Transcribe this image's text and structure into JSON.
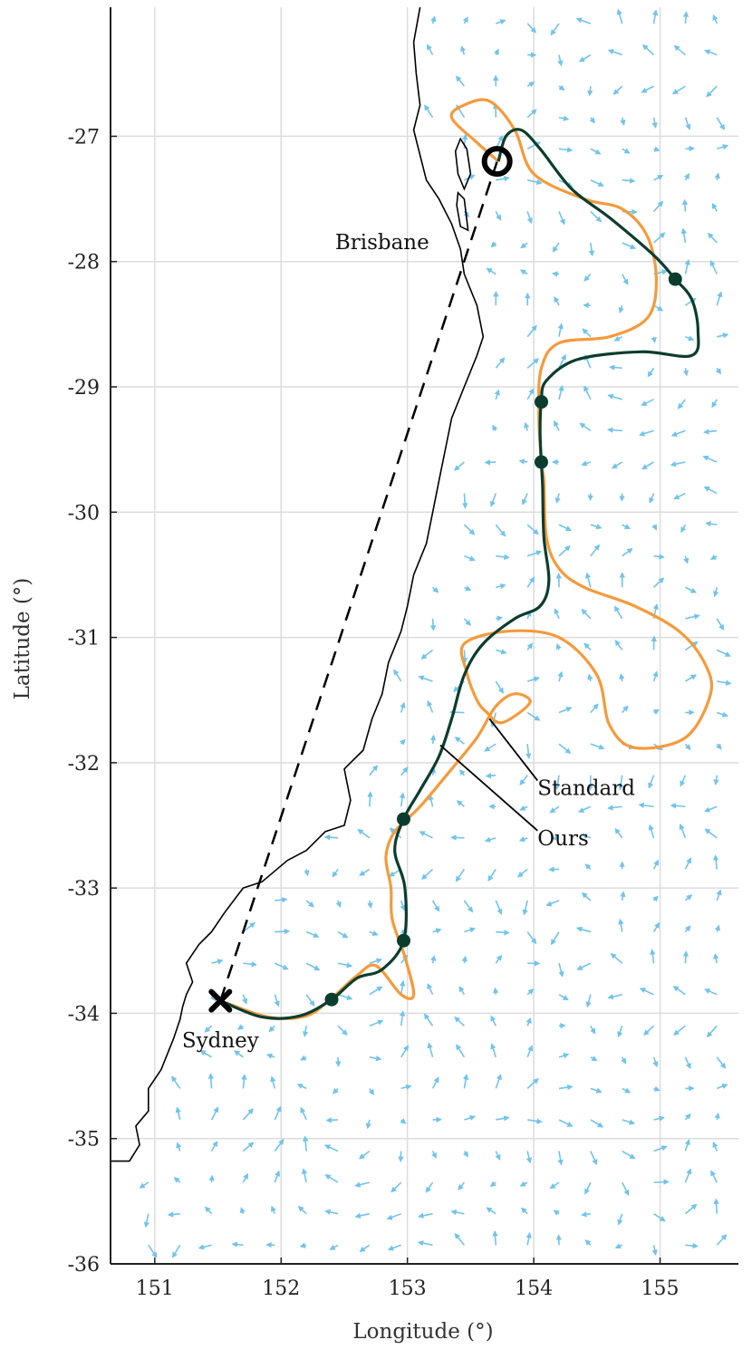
{
  "chart_data": {
    "type": "line",
    "title": "",
    "xlabel": "Longitude (°)",
    "ylabel": "Latitude (°)",
    "xlim": [
      150.65,
      155.62
    ],
    "ylim": [
      -36,
      -25.97
    ],
    "xticks": [
      151,
      152,
      153,
      154,
      155
    ],
    "yticks": [
      -27,
      -28,
      -29,
      -30,
      -31,
      -32,
      -33,
      -34,
      -35,
      -36
    ],
    "grid": true,
    "legend": "none",
    "colors": {
      "standard": "#f59a3c",
      "ours": "#0b3d2e",
      "coast": "#000000",
      "currents": "#72c3ec",
      "straight": "#000000",
      "grid": "#dcdcdc"
    },
    "cities": [
      {
        "name": "Brisbane",
        "lon": 152.8,
        "lat": -27.9
      },
      {
        "name": "Sydney",
        "lon": 151.52,
        "lat": -34.27
      }
    ],
    "start": {
      "lon": 151.52,
      "lat": -33.9,
      "marker": "x"
    },
    "goal": {
      "lon": 153.71,
      "lat": -27.2,
      "marker": "o"
    },
    "annotations": [
      {
        "text": "Standard",
        "lon": 154.03,
        "lat": -32.2,
        "arrow_to": [
          153.65,
          -31.65
        ]
      },
      {
        "text": "Ours",
        "lon": 154.03,
        "lat": -32.6,
        "arrow_to": [
          153.26,
          -31.86
        ]
      }
    ],
    "straight_line": [
      [
        151.52,
        -33.9
      ],
      [
        153.71,
        -27.2
      ]
    ],
    "series": [
      {
        "name": "Standard",
        "points": [
          [
            151.52,
            -33.9
          ],
          [
            151.9,
            -34.03
          ],
          [
            152.2,
            -34.02
          ],
          [
            152.4,
            -33.88
          ],
          [
            152.6,
            -33.7
          ],
          [
            152.75,
            -33.62
          ],
          [
            152.95,
            -33.85
          ],
          [
            153.05,
            -33.85
          ],
          [
            152.98,
            -33.55
          ],
          [
            152.88,
            -33.25
          ],
          [
            152.87,
            -33.0
          ],
          [
            152.83,
            -32.75
          ],
          [
            152.9,
            -32.55
          ],
          [
            153.1,
            -32.35
          ],
          [
            153.35,
            -32.05
          ],
          [
            153.55,
            -31.8
          ],
          [
            153.7,
            -31.55
          ],
          [
            153.85,
            -31.45
          ],
          [
            153.97,
            -31.52
          ],
          [
            153.75,
            -31.68
          ],
          [
            153.63,
            -31.6
          ],
          [
            153.55,
            -31.5
          ],
          [
            153.47,
            -31.28
          ],
          [
            153.45,
            -31.05
          ],
          [
            153.8,
            -30.95
          ],
          [
            154.2,
            -31.0
          ],
          [
            154.5,
            -31.3
          ],
          [
            154.6,
            -31.7
          ],
          [
            154.8,
            -31.88
          ],
          [
            155.2,
            -31.8
          ],
          [
            155.4,
            -31.45
          ],
          [
            155.35,
            -31.2
          ],
          [
            155.15,
            -30.95
          ],
          [
            154.8,
            -30.75
          ],
          [
            154.4,
            -30.6
          ],
          [
            154.2,
            -30.45
          ],
          [
            154.1,
            -30.2
          ],
          [
            154.08,
            -29.75
          ],
          [
            154.06,
            -29.6
          ],
          [
            154.04,
            -29.2
          ],
          [
            154.06,
            -28.85
          ],
          [
            154.2,
            -28.65
          ],
          [
            154.6,
            -28.6
          ],
          [
            154.9,
            -28.45
          ],
          [
            154.97,
            -28.15
          ],
          [
            154.9,
            -27.8
          ],
          [
            154.7,
            -27.58
          ],
          [
            154.4,
            -27.5
          ],
          [
            154.0,
            -27.3
          ],
          [
            153.85,
            -26.95
          ],
          [
            153.65,
            -26.72
          ],
          [
            153.45,
            -26.75
          ],
          [
            153.35,
            -26.85
          ],
          [
            153.55,
            -27.05
          ],
          [
            153.72,
            -27.2
          ]
        ]
      },
      {
        "name": "Ours",
        "points": [
          [
            151.52,
            -33.9
          ],
          [
            151.85,
            -34.03
          ],
          [
            152.15,
            -34.02
          ],
          [
            152.4,
            -33.89
          ],
          [
            152.6,
            -33.72
          ],
          [
            152.8,
            -33.65
          ],
          [
            152.97,
            -33.42
          ],
          [
            152.98,
            -33.0
          ],
          [
            152.9,
            -32.7
          ],
          [
            152.97,
            -32.45
          ],
          [
            153.1,
            -32.22
          ],
          [
            153.25,
            -31.95
          ],
          [
            153.35,
            -31.65
          ],
          [
            153.45,
            -31.3
          ],
          [
            153.6,
            -31.05
          ],
          [
            153.85,
            -30.85
          ],
          [
            154.05,
            -30.75
          ],
          [
            154.12,
            -30.55
          ],
          [
            154.08,
            -30.2
          ],
          [
            154.07,
            -29.8
          ],
          [
            154.06,
            -29.6
          ],
          [
            154.05,
            -29.35
          ],
          [
            154.06,
            -29.12
          ],
          [
            154.1,
            -28.95
          ],
          [
            154.35,
            -28.78
          ],
          [
            154.85,
            -28.72
          ],
          [
            155.25,
            -28.75
          ],
          [
            155.3,
            -28.55
          ],
          [
            155.25,
            -28.3
          ],
          [
            155.12,
            -28.14
          ],
          [
            154.95,
            -27.95
          ],
          [
            154.6,
            -27.65
          ],
          [
            154.3,
            -27.42
          ],
          [
            154.05,
            -27.1
          ],
          [
            153.9,
            -26.95
          ],
          [
            153.78,
            -27.0
          ],
          [
            153.72,
            -27.2
          ]
        ]
      }
    ],
    "waypoints_ours": [
      [
        152.4,
        -33.89
      ],
      [
        152.97,
        -33.42
      ],
      [
        152.97,
        -32.45
      ],
      [
        154.06,
        -29.6
      ],
      [
        154.06,
        -29.12
      ],
      [
        155.12,
        -28.14
      ]
    ],
    "coastline": [
      [
        150.65,
        -35.18
      ],
      [
        150.8,
        -35.18
      ],
      [
        150.88,
        -35.05
      ],
      [
        150.85,
        -34.9
      ],
      [
        150.95,
        -34.78
      ],
      [
        150.95,
        -34.6
      ],
      [
        151.05,
        -34.45
      ],
      [
        151.15,
        -34.2
      ],
      [
        151.2,
        -34.05
      ],
      [
        151.22,
        -33.95
      ],
      [
        151.25,
        -33.85
      ],
      [
        151.3,
        -33.75
      ],
      [
        151.25,
        -33.6
      ],
      [
        151.35,
        -33.45
      ],
      [
        151.45,
        -33.35
      ],
      [
        151.55,
        -33.2
      ],
      [
        151.7,
        -33.0
      ],
      [
        151.85,
        -32.95
      ],
      [
        152.05,
        -32.78
      ],
      [
        152.2,
        -32.7
      ],
      [
        152.35,
        -32.55
      ],
      [
        152.5,
        -32.5
      ],
      [
        152.55,
        -32.3
      ],
      [
        152.5,
        -32.05
      ],
      [
        152.65,
        -31.9
      ],
      [
        152.72,
        -31.65
      ],
      [
        152.8,
        -31.45
      ],
      [
        152.85,
        -31.2
      ],
      [
        152.95,
        -30.95
      ],
      [
        153.0,
        -30.75
      ],
      [
        153.05,
        -30.5
      ],
      [
        153.15,
        -30.25
      ],
      [
        153.2,
        -30.0
      ],
      [
        153.25,
        -29.75
      ],
      [
        153.3,
        -29.5
      ],
      [
        153.35,
        -29.25
      ],
      [
        153.45,
        -29.0
      ],
      [
        153.55,
        -28.75
      ],
      [
        153.6,
        -28.6
      ],
      [
        153.55,
        -28.35
      ],
      [
        153.45,
        -28.1
      ],
      [
        153.42,
        -27.9
      ],
      [
        153.35,
        -27.7
      ],
      [
        153.25,
        -27.5
      ],
      [
        153.15,
        -27.35
      ],
      [
        153.1,
        -27.15
      ],
      [
        153.05,
        -26.95
      ],
      [
        153.1,
        -26.75
      ],
      [
        153.07,
        -26.5
      ],
      [
        153.05,
        -26.25
      ],
      [
        153.1,
        -25.97
      ]
    ],
    "islands": [
      [
        [
          153.42,
          -27.02
        ],
        [
          153.47,
          -27.1
        ],
        [
          153.5,
          -27.3
        ],
        [
          153.45,
          -27.42
        ],
        [
          153.4,
          -27.3
        ],
        [
          153.38,
          -27.12
        ],
        [
          153.42,
          -27.02
        ]
      ],
      [
        [
          153.4,
          -27.45
        ],
        [
          153.45,
          -27.5
        ],
        [
          153.48,
          -27.75
        ],
        [
          153.42,
          -27.72
        ],
        [
          153.39,
          -27.55
        ],
        [
          153.4,
          -27.45
        ]
      ]
    ]
  }
}
